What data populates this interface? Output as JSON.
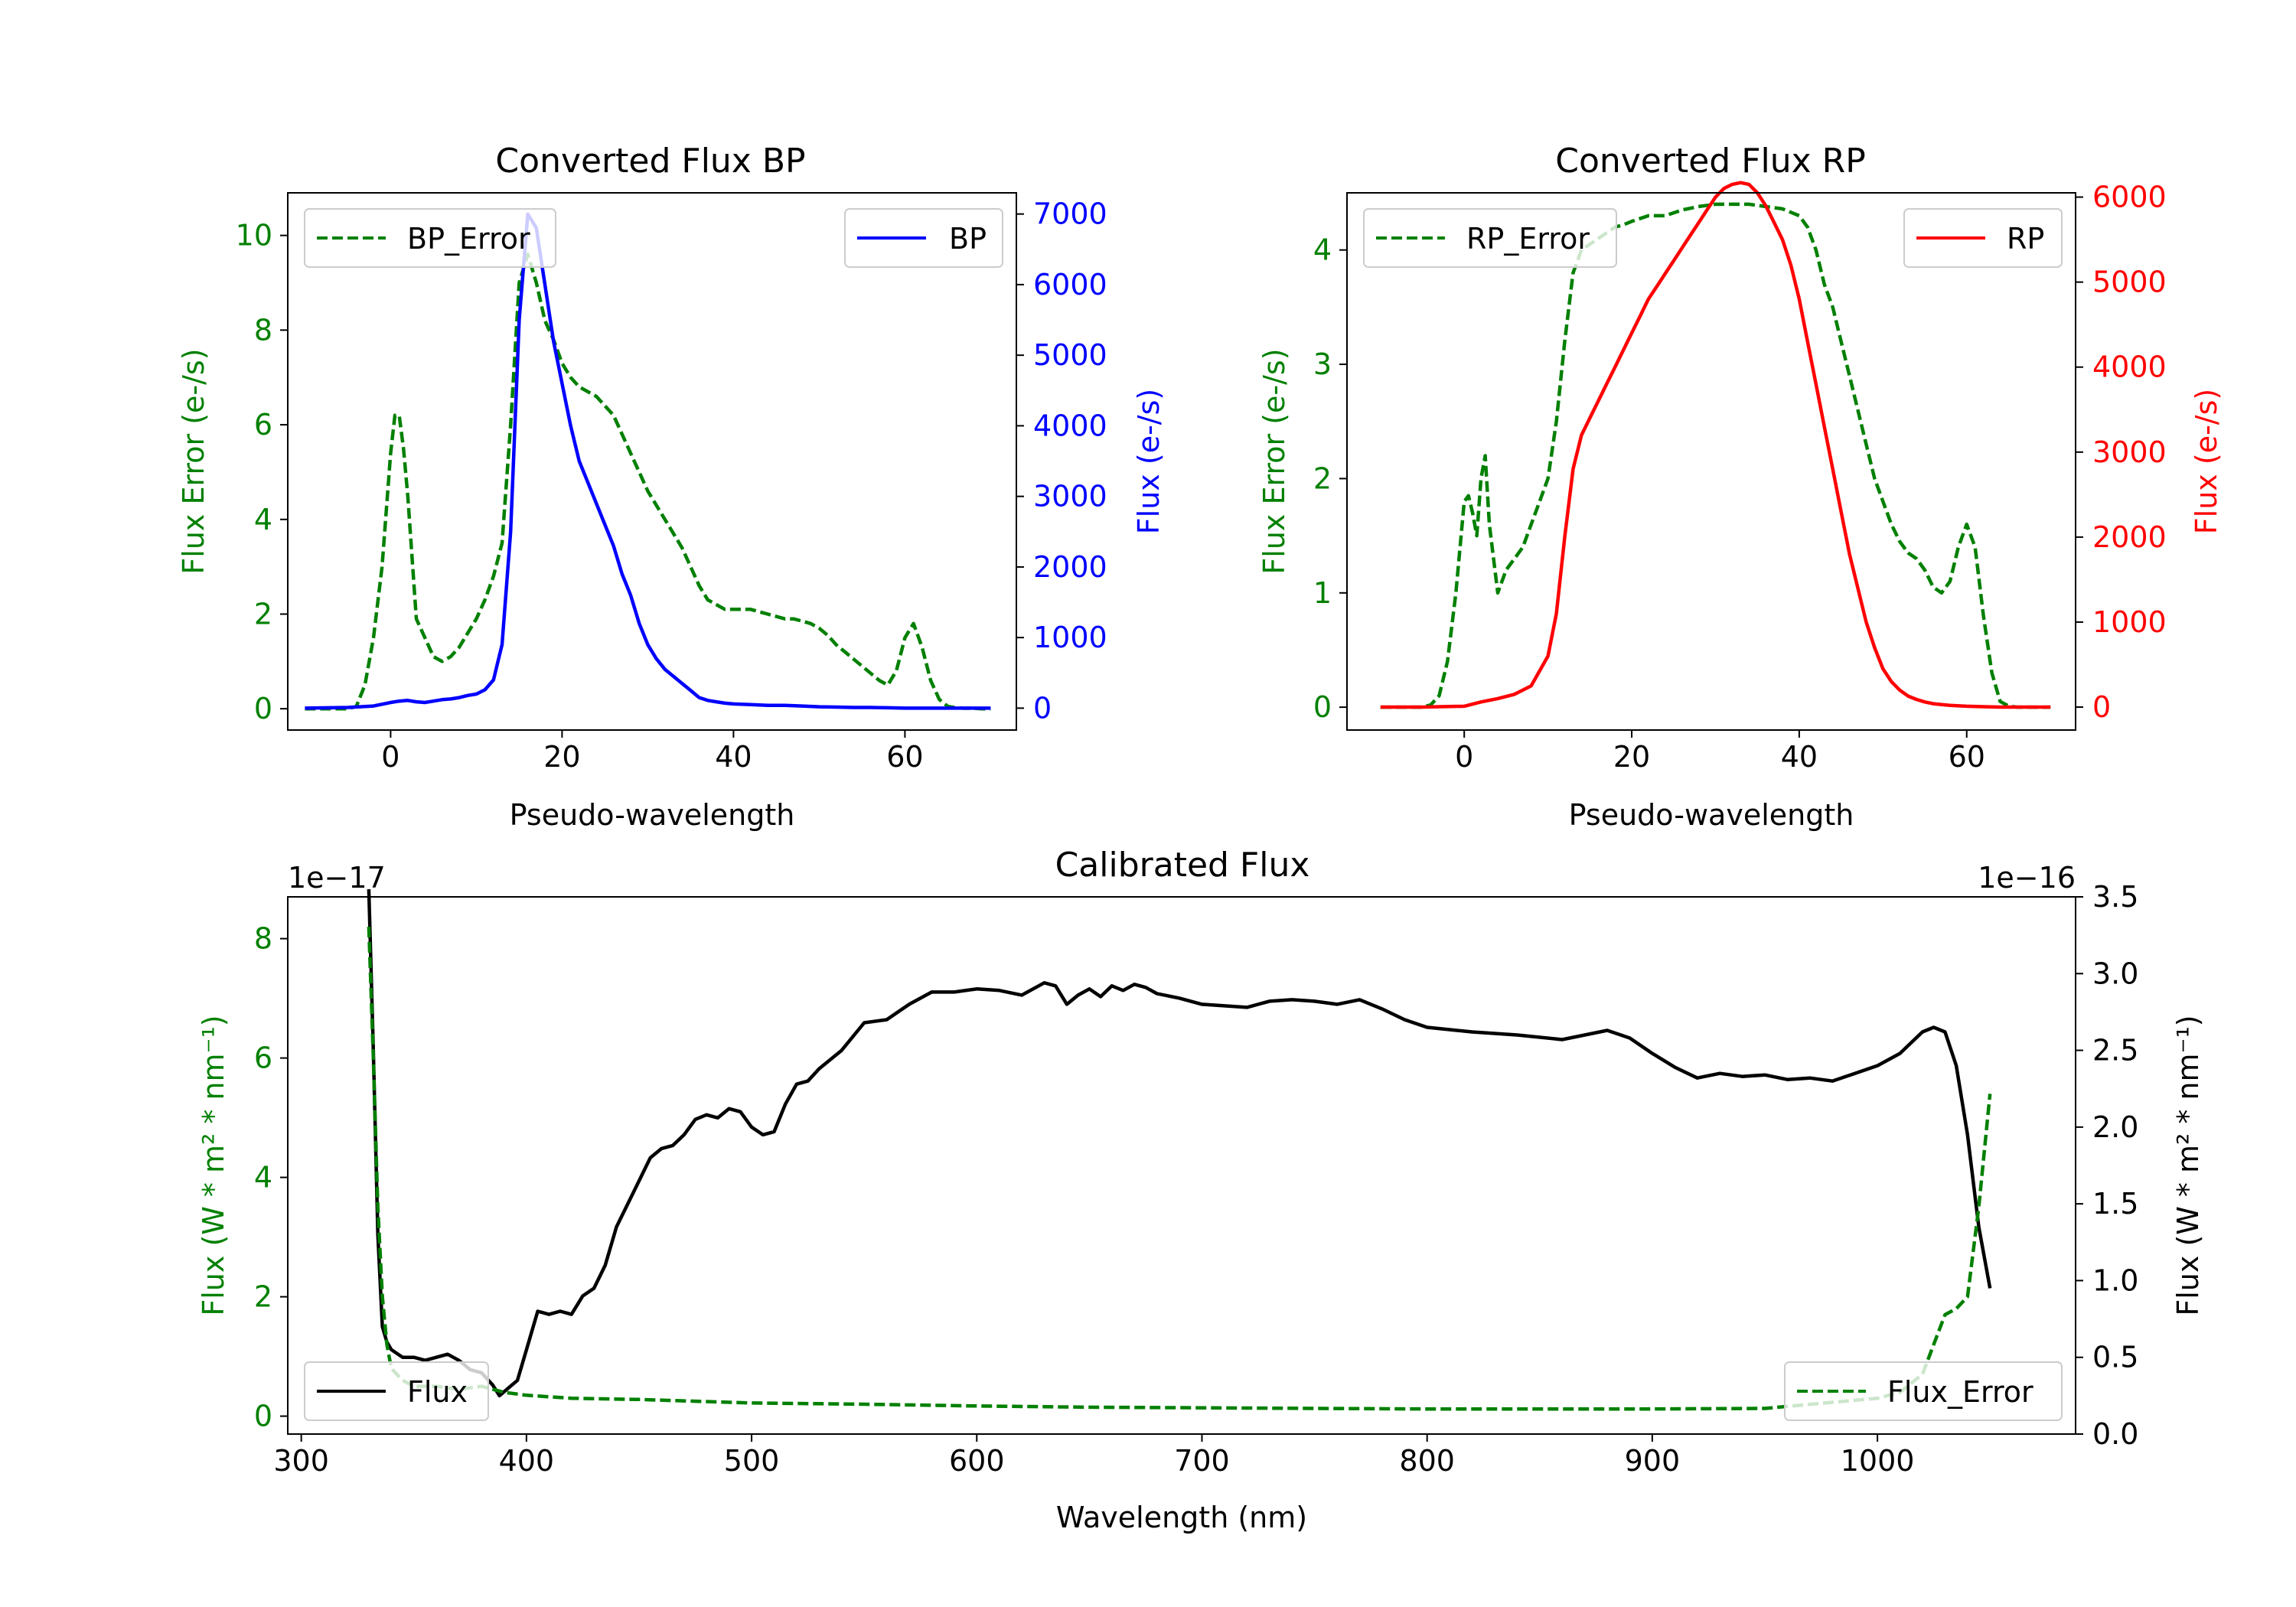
{
  "chart_data": [
    {
      "id": "bp",
      "type": "line",
      "title": "Converted Flux BP",
      "xlabel": "Pseudo-wavelength",
      "ylabel_left": "Flux Error (e-/s)",
      "ylabel_right": "Flux (e-/s)",
      "xlim": [
        -12,
        73
      ],
      "ylim_left": [
        -0.45,
        10.9
      ],
      "ylim_right": [
        -310,
        7300
      ],
      "x_ticks": [
        0,
        20,
        40,
        60
      ],
      "left_ticks": [
        0,
        2,
        4,
        6,
        8,
        10
      ],
      "right_ticks": [
        0,
        1000,
        2000,
        3000,
        4000,
        5000,
        6000,
        7000
      ],
      "left_color": "#008000",
      "right_color": "#0000ff",
      "legend_left": "BP_Error",
      "legend_right": "BP",
      "series_left": {
        "name": "BP_Error",
        "color": "#008000",
        "dashed": true,
        "x": [
          -10,
          -5,
          -4,
          -3,
          -2,
          -1,
          0,
          0.5,
          1,
          1.5,
          2,
          3,
          4,
          5,
          6,
          7,
          8,
          9,
          10,
          11,
          12,
          13,
          14,
          15,
          16,
          17,
          18,
          19,
          20,
          21,
          22,
          23,
          24,
          25,
          26,
          27,
          28,
          29,
          30,
          31,
          32,
          33,
          34,
          35,
          36,
          37,
          38,
          39,
          40,
          41,
          42,
          43,
          44,
          45,
          46,
          47,
          48,
          49,
          50,
          51,
          52,
          53,
          54,
          55,
          56,
          57,
          58,
          59,
          60,
          61,
          62,
          63,
          64,
          65,
          66,
          67,
          68,
          69,
          70
        ],
        "y": [
          0,
          0,
          0.05,
          0.5,
          1.5,
          3,
          5.4,
          6.2,
          6.2,
          5.5,
          4.5,
          1.9,
          1.5,
          1.1,
          1.0,
          1.1,
          1.3,
          1.6,
          1.9,
          2.3,
          2.8,
          3.5,
          6.0,
          9.0,
          9.6,
          9.0,
          8.2,
          7.8,
          7.3,
          7.0,
          6.8,
          6.7,
          6.6,
          6.4,
          6.2,
          5.8,
          5.4,
          5.0,
          4.6,
          4.3,
          4.0,
          3.7,
          3.4,
          3.0,
          2.6,
          2.3,
          2.2,
          2.1,
          2.1,
          2.1,
          2.1,
          2.05,
          2.0,
          1.95,
          1.9,
          1.9,
          1.85,
          1.8,
          1.7,
          1.55,
          1.35,
          1.2,
          1.05,
          0.9,
          0.75,
          0.6,
          0.5,
          0.8,
          1.5,
          1.8,
          1.3,
          0.6,
          0.2,
          0.05,
          0.02,
          0.01,
          0.01,
          0,
          0
        ]
      },
      "series_right": {
        "name": "BP",
        "color": "#0000ff",
        "dashed": false,
        "x": [
          -10,
          -5,
          -2,
          0,
          1,
          2,
          3,
          4,
          5,
          6,
          7,
          8,
          9,
          10,
          11,
          12,
          13,
          14,
          15,
          16,
          17,
          18,
          19,
          20,
          21,
          22,
          23,
          24,
          25,
          26,
          27,
          28,
          29,
          30,
          31,
          32,
          33,
          34,
          35,
          36,
          37,
          38,
          39,
          40,
          42,
          44,
          46,
          48,
          50,
          52,
          54,
          56,
          58,
          60,
          62,
          64,
          66,
          68,
          70
        ],
        "y": [
          0,
          10,
          30,
          80,
          100,
          110,
          90,
          80,
          100,
          120,
          130,
          150,
          180,
          200,
          260,
          400,
          900,
          2500,
          5500,
          7000,
          6800,
          6000,
          5200,
          4600,
          4000,
          3500,
          3200,
          2900,
          2600,
          2300,
          1900,
          1600,
          1200,
          900,
          700,
          550,
          450,
          350,
          250,
          150,
          110,
          90,
          70,
          60,
          50,
          40,
          40,
          30,
          20,
          15,
          10,
          10,
          5,
          0,
          0,
          0,
          0,
          0,
          0
        ]
      }
    },
    {
      "id": "rp",
      "type": "line",
      "title": "Converted Flux RP",
      "xlabel": "Pseudo-wavelength",
      "ylabel_left": "Flux Error (e-/s)",
      "ylabel_right": "Flux (e-/s)",
      "xlim": [
        -14,
        73
      ],
      "ylim_left": [
        -0.2,
        4.5
      ],
      "ylim_right": [
        -270,
        6050
      ],
      "x_ticks": [
        0,
        20,
        40,
        60
      ],
      "left_ticks": [
        0,
        1,
        2,
        3,
        4
      ],
      "right_ticks": [
        0,
        1000,
        2000,
        3000,
        4000,
        5000,
        6000
      ],
      "left_color": "#008000",
      "right_color": "#ff0000",
      "legend_left": "RP_Error",
      "legend_right": "RP",
      "series_left": {
        "name": "RP_Error",
        "color": "#008000",
        "dashed": true,
        "x": [
          -10,
          -5,
          -4,
          -3,
          -2,
          -1,
          0,
          0.5,
          1,
          1.5,
          2,
          2.5,
          3,
          4,
          5,
          6,
          7,
          8,
          9,
          10,
          11,
          12,
          13,
          14,
          15,
          16,
          17,
          18,
          19,
          20,
          22,
          24,
          26,
          28,
          30,
          32,
          34,
          36,
          38,
          40,
          41,
          42,
          43,
          44,
          45,
          46,
          47,
          48,
          49,
          50,
          51,
          52,
          53,
          54,
          55,
          56,
          57,
          58,
          59,
          60,
          61,
          62,
          63,
          64,
          65,
          66,
          68,
          70
        ],
        "y": [
          0,
          0,
          0.02,
          0.1,
          0.4,
          1.0,
          1.8,
          1.85,
          1.7,
          1.5,
          2.0,
          2.2,
          1.6,
          1.0,
          1.2,
          1.3,
          1.4,
          1.6,
          1.8,
          2.0,
          2.5,
          3.2,
          3.8,
          4.0,
          4.05,
          4.1,
          4.15,
          4.2,
          4.22,
          4.25,
          4.3,
          4.3,
          4.35,
          4.38,
          4.4,
          4.4,
          4.4,
          4.38,
          4.36,
          4.3,
          4.2,
          4.0,
          3.7,
          3.5,
          3.2,
          2.9,
          2.6,
          2.3,
          2.0,
          1.8,
          1.6,
          1.45,
          1.35,
          1.3,
          1.2,
          1.05,
          1.0,
          1.1,
          1.4,
          1.6,
          1.4,
          0.8,
          0.3,
          0.05,
          0.01,
          0,
          0,
          0
        ]
      },
      "series_right": {
        "name": "RP",
        "color": "#ff0000",
        "dashed": false,
        "x": [
          -10,
          -5,
          0,
          2,
          4,
          6,
          8,
          10,
          11,
          12,
          13,
          14,
          15,
          16,
          17,
          18,
          19,
          20,
          21,
          22,
          23,
          24,
          25,
          26,
          27,
          28,
          29,
          30,
          31,
          32,
          33,
          34,
          35,
          36,
          37,
          38,
          39,
          40,
          41,
          42,
          43,
          44,
          45,
          46,
          47,
          48,
          49,
          50,
          51,
          52,
          53,
          54,
          55,
          56,
          58,
          60,
          62,
          64,
          66,
          68,
          70
        ],
        "y": [
          0,
          0,
          10,
          60,
          100,
          150,
          250,
          600,
          1100,
          2000,
          2800,
          3200,
          3400,
          3600,
          3800,
          4000,
          4200,
          4400,
          4600,
          4800,
          4950,
          5100,
          5250,
          5400,
          5550,
          5700,
          5850,
          6000,
          6100,
          6150,
          6170,
          6150,
          6050,
          5900,
          5700,
          5500,
          5200,
          4800,
          4300,
          3800,
          3300,
          2800,
          2300,
          1800,
          1400,
          1000,
          700,
          450,
          300,
          200,
          130,
          90,
          60,
          40,
          20,
          10,
          5,
          0,
          0,
          0,
          0
        ]
      }
    },
    {
      "id": "cal",
      "type": "line",
      "title": "Calibrated Flux",
      "xlabel": "Wavelength (nm)",
      "ylabel_left": "Flux (W * m² * nm⁻¹)",
      "ylabel_right": "Flux (W * m² * nm⁻¹)",
      "offset_left": "1e−17",
      "offset_right": "1e−16",
      "xlim": [
        294,
        1088
      ],
      "ylim_left": [
        -0.3,
        8.7
      ],
      "ylim_right": [
        0,
        3.5
      ],
      "x_ticks": [
        300,
        400,
        500,
        600,
        700,
        800,
        900,
        1000
      ],
      "left_ticks": [
        0,
        2,
        4,
        6,
        8
      ],
      "right_ticks": [
        0.0,
        0.5,
        1.0,
        1.5,
        2.0,
        2.5,
        3.0,
        3.5
      ],
      "left_color": "#008000",
      "right_color": "#000000",
      "legend_left": "Flux",
      "legend_right": "Flux_Error",
      "series_left": {
        "name": "Flux_Error",
        "color": "#008000",
        "dashed": true,
        "x": [
          330,
          332,
          334,
          336,
          338,
          340,
          345,
          350,
          360,
          370,
          380,
          390,
          400,
          420,
          450,
          500,
          550,
          600,
          650,
          700,
          750,
          800,
          850,
          900,
          950,
          1000,
          1010,
          1020,
          1025,
          1030,
          1035,
          1040,
          1045,
          1050
        ],
        "y": [
          8.2,
          6.0,
          3.5,
          2.0,
          1.2,
          0.8,
          0.6,
          0.5,
          0.5,
          0.45,
          0.5,
          0.4,
          0.35,
          0.3,
          0.28,
          0.22,
          0.2,
          0.17,
          0.15,
          0.14,
          0.13,
          0.12,
          0.12,
          0.12,
          0.13,
          0.3,
          0.4,
          0.7,
          1.2,
          1.7,
          1.8,
          2.0,
          3.5,
          5.4
        ]
      },
      "series_right": {
        "name": "Flux",
        "color": "#000000",
        "dashed": false,
        "x": [
          330,
          332,
          334,
          336,
          338,
          340,
          345,
          350,
          355,
          360,
          365,
          370,
          375,
          380,
          385,
          388,
          392,
          396,
          400,
          405,
          410,
          415,
          420,
          425,
          430,
          435,
          440,
          445,
          450,
          455,
          460,
          465,
          470,
          475,
          480,
          485,
          490,
          495,
          500,
          505,
          510,
          515,
          520,
          525,
          530,
          540,
          550,
          560,
          570,
          580,
          590,
          600,
          610,
          620,
          630,
          635,
          640,
          645,
          650,
          655,
          660,
          665,
          670,
          675,
          680,
          690,
          700,
          710,
          720,
          730,
          740,
          750,
          760,
          770,
          780,
          790,
          800,
          820,
          840,
          860,
          880,
          890,
          900,
          910,
          920,
          930,
          940,
          950,
          960,
          970,
          980,
          990,
          1000,
          1010,
          1020,
          1025,
          1030,
          1035,
          1040,
          1045,
          1050
        ],
        "y": [
          3.55,
          2.5,
          1.3,
          0.7,
          0.6,
          0.55,
          0.5,
          0.5,
          0.48,
          0.5,
          0.52,
          0.48,
          0.42,
          0.4,
          0.32,
          0.25,
          0.3,
          0.35,
          0.55,
          0.8,
          0.78,
          0.8,
          0.78,
          0.9,
          0.95,
          1.1,
          1.35,
          1.5,
          1.65,
          1.8,
          1.86,
          1.88,
          1.95,
          2.05,
          2.08,
          2.06,
          2.12,
          2.1,
          2.0,
          1.95,
          1.97,
          2.15,
          2.28,
          2.3,
          2.38,
          2.5,
          2.68,
          2.7,
          2.8,
          2.88,
          2.88,
          2.9,
          2.89,
          2.86,
          2.94,
          2.92,
          2.8,
          2.86,
          2.9,
          2.85,
          2.92,
          2.89,
          2.93,
          2.91,
          2.87,
          2.84,
          2.8,
          2.79,
          2.78,
          2.82,
          2.83,
          2.82,
          2.8,
          2.83,
          2.77,
          2.7,
          2.65,
          2.62,
          2.6,
          2.57,
          2.63,
          2.58,
          2.48,
          2.39,
          2.32,
          2.35,
          2.33,
          2.34,
          2.31,
          2.32,
          2.3,
          2.35,
          2.4,
          2.48,
          2.62,
          2.65,
          2.62,
          2.4,
          1.95,
          1.35,
          0.95
        ]
      }
    }
  ]
}
